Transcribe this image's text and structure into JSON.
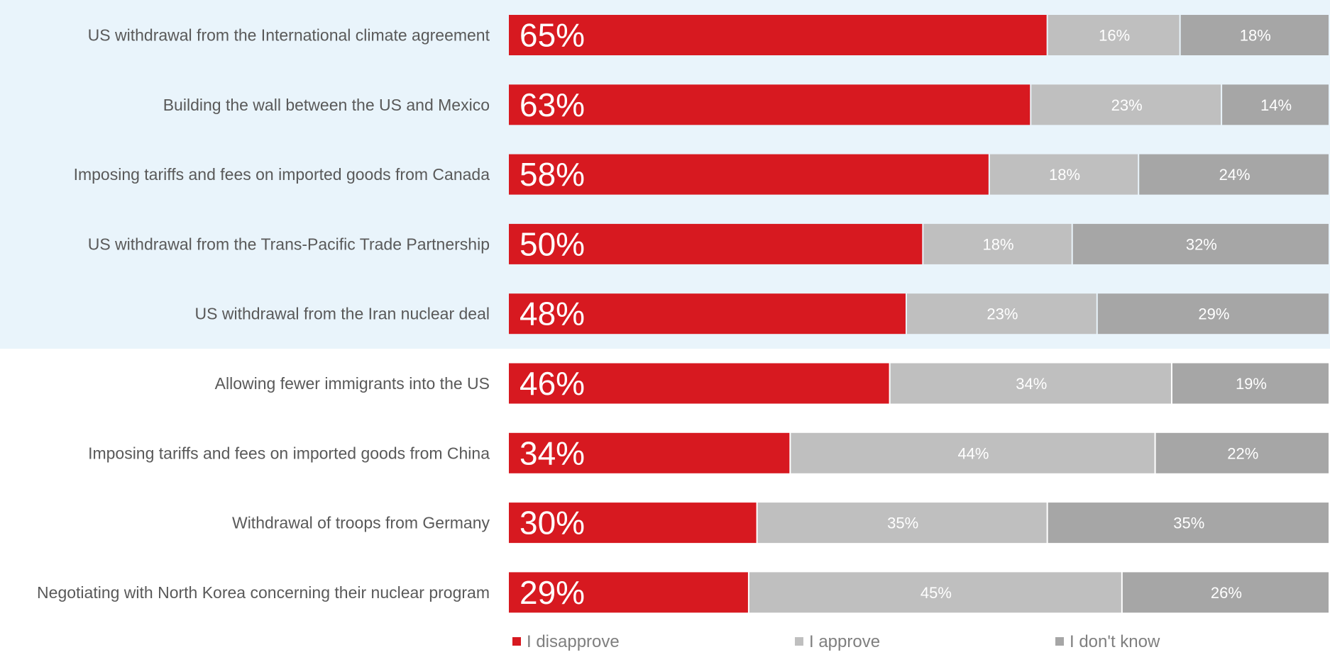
{
  "chart_data": {
    "type": "bar",
    "orientation": "horizontal",
    "stacked": true,
    "categories": [
      "US withdrawal from the International climate agreement",
      "Building the wall between the US and Mexico",
      "Imposing tariffs and fees on imported goods from Canada",
      "US withdrawal from the Trans-Pacific Trade Partnership",
      "US withdrawal from the Iran nuclear deal",
      "Allowing fewer immigrants into the US",
      "Imposing tariffs and fees on imported goods from China",
      "Withdrawal of troops from Germany",
      "Negotiating with North Korea concerning their nuclear program"
    ],
    "series": [
      {
        "name": "I disapprove",
        "color": "#d71920",
        "values": [
          65,
          63,
          58,
          50,
          48,
          46,
          34,
          30,
          29
        ]
      },
      {
        "name": "I approve",
        "color": "#bfbfbf",
        "values": [
          16,
          23,
          18,
          18,
          23,
          34,
          44,
          35,
          45
        ]
      },
      {
        "name": "I don't know",
        "color": "#a6a6a6",
        "values": [
          18,
          14,
          24,
          32,
          29,
          19,
          22,
          35,
          26
        ]
      }
    ],
    "value_suffix": "%",
    "highlighted_categories": 5,
    "highlight_color": "#e9f4fb",
    "legend_position": "bottom",
    "grid": false
  }
}
